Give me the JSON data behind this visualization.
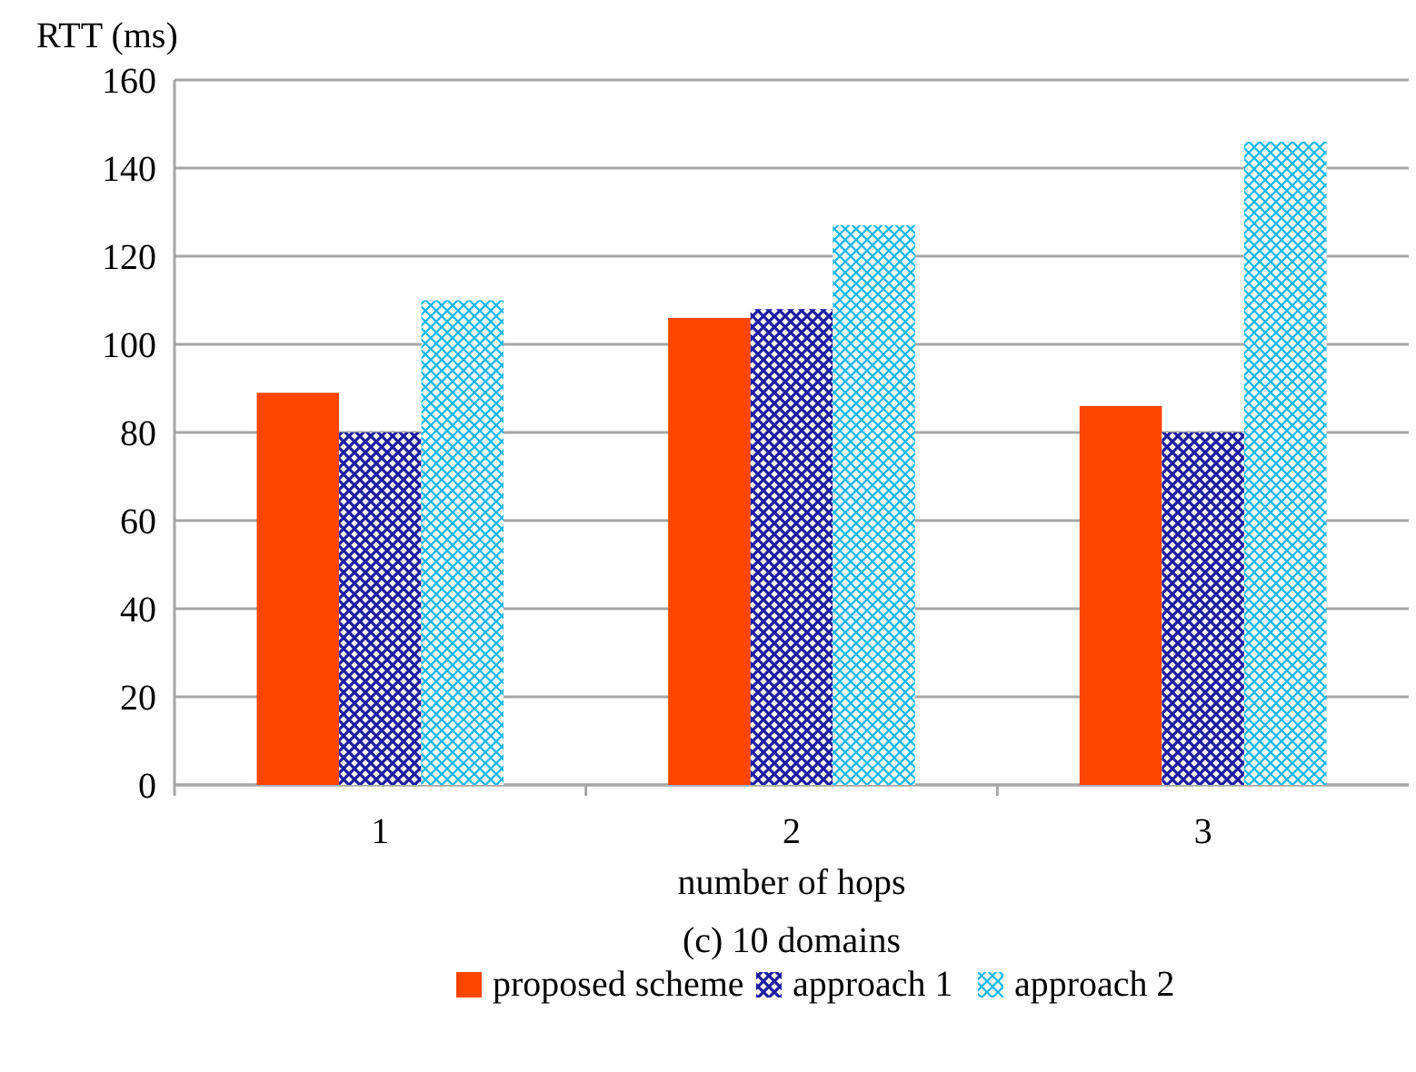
{
  "chart_data": {
    "type": "bar",
    "title": "(c) 10 domains",
    "xlabel": "number of hops",
    "ylabel": "RTT (ms)",
    "categories": [
      "1",
      "2",
      "3"
    ],
    "series": [
      {
        "name": "proposed scheme",
        "color": "#ff4500",
        "values": [
          89,
          106,
          86
        ]
      },
      {
        "name": "approach 1",
        "color": "#1c1ca0",
        "values": [
          80,
          108,
          80
        ]
      },
      {
        "name": "approach 2",
        "color": "#1ab8f0",
        "values": [
          110,
          127,
          146
        ]
      }
    ],
    "ylim": [
      0,
      160
    ],
    "yticks": [
      0,
      20,
      40,
      60,
      80,
      100,
      120,
      140,
      160
    ],
    "grid": "y",
    "legend": "bottom"
  }
}
